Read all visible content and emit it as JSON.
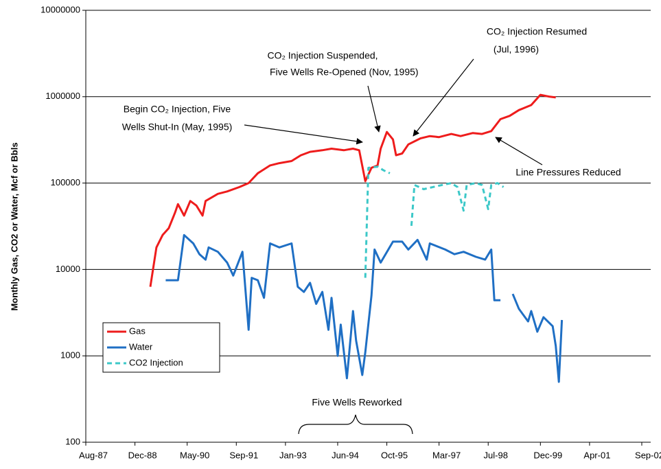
{
  "chart_data": {
    "type": "line",
    "y_label": "Monthly Gas, CO2 or Water, Mcf or Bbls",
    "log_y": true,
    "grid": true,
    "legend": "lower left",
    "xlim": [
      "1987-08",
      "2002-09"
    ],
    "xticks": [
      {
        "value": "1987-08",
        "label": "Aug-87"
      },
      {
        "value": "1988-12",
        "label": "Dec-88"
      },
      {
        "value": "1990-05",
        "label": "May-90"
      },
      {
        "value": "1991-09",
        "label": "Sep-91"
      },
      {
        "value": "1993-01",
        "label": "Jan-93"
      },
      {
        "value": "1994-06",
        "label": "Jun-94"
      },
      {
        "value": "1995-10",
        "label": "Oct-95"
      },
      {
        "value": "1997-03",
        "label": "Mar-97"
      },
      {
        "value": "1998-07",
        "label": "Jul-98"
      },
      {
        "value": "1999-12",
        "label": "Dec-99"
      },
      {
        "value": "2001-04",
        "label": "Apr-01"
      },
      {
        "value": "2002-09",
        "label": "Sep-02"
      }
    ],
    "ylim": [
      100,
      10000000
    ],
    "yticks": [
      100,
      1000,
      10000,
      100000,
      1000000,
      10000000
    ],
    "series": [
      {
        "name": "Gas",
        "color": "#ee1c1c",
        "dash": false,
        "x": [
          "1989-05",
          "1989-07",
          "1989-09",
          "1989-11",
          "1990-01",
          "1990-02",
          "1990-04",
          "1990-06",
          "1990-08",
          "1990-10",
          "1990-11",
          "1991-03",
          "1991-06",
          "1991-10",
          "1992-01",
          "1992-04",
          "1992-08",
          "1992-11",
          "1993-03",
          "1993-06",
          "1993-09",
          "1994-01",
          "1994-04",
          "1994-08",
          "1994-11",
          "1995-01",
          "1995-03",
          "1995-05",
          "1995-07",
          "1995-08",
          "1995-10",
          "1995-12",
          "1996-01",
          "1996-03",
          "1996-05",
          "1996-09",
          "1996-12",
          "1997-03",
          "1997-07",
          "1997-10",
          "1998-02",
          "1998-05",
          "1998-08",
          "1998-11",
          "1999-02",
          "1999-05",
          "1999-09",
          "1999-12",
          "2000-03",
          "2000-05"
        ],
        "values": [
          6300,
          18000,
          25000,
          30000,
          45000,
          57000,
          42000,
          62000,
          55000,
          42000,
          62000,
          75000,
          80000,
          90000,
          100000,
          130000,
          160000,
          170000,
          180000,
          210000,
          230000,
          240000,
          250000,
          240000,
          250000,
          240000,
          105000,
          150000,
          160000,
          250000,
          390000,
          320000,
          210000,
          220000,
          280000,
          330000,
          350000,
          340000,
          370000,
          350000,
          380000,
          370000,
          400000,
          550000,
          600000,
          700000,
          800000,
          1050000,
          1000000,
          980000
        ]
      },
      {
        "name": "Water",
        "color": "#1f6fc4",
        "dash": false,
        "x": [
          "1989-10",
          "1990-02",
          "1990-04",
          "1990-07",
          "1990-09",
          "1990-11",
          "1990-12",
          "1991-03",
          "1991-06",
          "1991-08",
          "1991-11",
          "1992-01",
          "1992-02",
          "1992-04",
          "1992-06",
          "1992-08",
          "1992-11",
          "1993-03",
          "1993-05",
          "1993-07",
          "1993-09",
          "1993-11",
          "1994-01",
          "1994-03",
          "1994-04",
          "1994-06",
          "1994-07",
          "1994-09",
          "1994-11",
          "1994-12",
          "1995-02",
          "1995-03",
          "1995-05",
          "1995-06",
          "1995-08",
          "1995-12",
          "1996-03",
          "1996-05",
          "1996-08",
          "1996-11",
          "1996-12",
          "1997-05",
          "1997-08",
          "1997-11",
          "1998-03",
          "1998-06",
          "1998-08",
          "1998-09",
          "1998-11",
          "1998-12",
          "1999-03",
          "1999-05",
          "1999-08",
          "1999-09",
          "1999-11",
          "2000-01",
          "2000-04",
          "2000-05",
          "2000-06",
          "2000-07"
        ],
        "values": [
          7500,
          7500,
          25000,
          20000,
          15000,
          13000,
          18000,
          16000,
          12000,
          8500,
          16000,
          2000,
          8000,
          7500,
          4700,
          20000,
          18000,
          20000,
          6300,
          5500,
          7000,
          4000,
          5500,
          2000,
          4700,
          1000,
          2300,
          550,
          3300,
          1500,
          600,
          1100,
          5000,
          17000,
          12000,
          21000,
          21000,
          17000,
          22000,
          13000,
          20000,
          17000,
          15000,
          16000,
          14000,
          13000,
          17000,
          4400,
          4400,
          null,
          5200,
          3500,
          2500,
          3300,
          1900,
          2800,
          2200,
          1300,
          500,
          2600
        ]
      },
      {
        "name": "CO2 Injection",
        "color": "#3cc8c8",
        "dash": true,
        "x": [
          "1995-03",
          "1995-04",
          "1995-07",
          "1995-09",
          "1995-11",
          "1996-03",
          "1996-06",
          "1996-07",
          "1996-10",
          "1997-01",
          "1997-04",
          "1997-07",
          "1997-09",
          "1997-11",
          "1997-12",
          "1998-03",
          "1998-05",
          "1998-07",
          "1998-08",
          "1998-10",
          "1998-12"
        ],
        "values": [
          8000,
          150000,
          155000,
          140000,
          130000,
          null,
          32000,
          95000,
          85000,
          90000,
          95000,
          100000,
          90000,
          48000,
          95000,
          100000,
          95000,
          50000,
          95000,
          100000,
          90000
        ]
      }
    ],
    "annotations": [
      {
        "lines": [
          "CO₂ Injection Resumed",
          "(Jul, 1996)"
        ]
      },
      {
        "lines": [
          "CO₂ Injection Suspended,",
          "Five Wells Re-Opened (Nov, 1995)"
        ]
      },
      {
        "lines": [
          "Begin CO₂ Injection, Five",
          "Wells Shut-In (May, 1995)"
        ]
      },
      {
        "lines": [
          "Line Pressures Reduced"
        ]
      },
      {
        "lines": [
          "Five Wells Reworked"
        ]
      }
    ]
  }
}
